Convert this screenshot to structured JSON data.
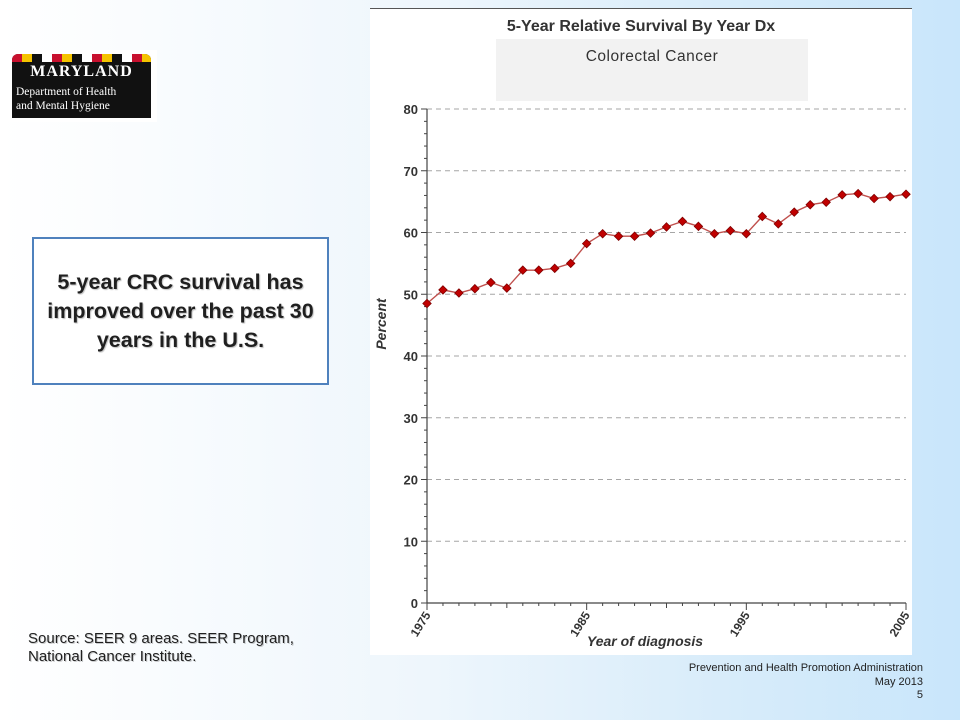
{
  "logo": {
    "name": "MARYLAND",
    "line1": "Department of Health",
    "line2": "and Mental Hygiene"
  },
  "callout": {
    "text": "5-year CRC survival has improved over the past 30 years in the U.S."
  },
  "source": {
    "text": "Source:  SEER 9 areas.  SEER Program, National Cancer Institute."
  },
  "footer": {
    "org": "Prevention and Health Promotion Administration",
    "date": "May 2013",
    "page": "5"
  },
  "chart_data": {
    "type": "line",
    "title": "5-Year Relative Survival By Year Dx",
    "subtitle": "Colorectal Cancer",
    "xlabel": "Year of diagnosis",
    "ylabel": "Percent",
    "xlim": [
      1975,
      2005
    ],
    "ylim": [
      0,
      80
    ],
    "yticks": [
      0,
      10,
      20,
      30,
      40,
      50,
      60,
      70,
      80
    ],
    "xtick_labels": [
      "1975",
      "1985",
      "1995",
      "2005"
    ],
    "grid": "horizontal dashed",
    "colors": {
      "line": "#c0504d",
      "marker": "#c00000",
      "marker_edge": "#7f0000",
      "grid": "#a6a6a6"
    },
    "series": [
      {
        "x": [
          1975,
          1976,
          1977,
          1978,
          1979,
          1980,
          1981,
          1982,
          1983,
          1984,
          1985,
          1986,
          1987,
          1988,
          1989,
          1990,
          1991,
          1992,
          1993,
          1994,
          1995,
          1996,
          1997,
          1998,
          1999,
          2000,
          2001,
          2002,
          2003,
          2004,
          2005
        ],
        "values": [
          48.5,
          50.7,
          50.2,
          50.9,
          51.9,
          51.0,
          53.9,
          53.9,
          54.2,
          55.0,
          58.2,
          59.8,
          59.4,
          59.4,
          59.9,
          60.9,
          61.8,
          61.0,
          59.8,
          60.3,
          59.8,
          62.6,
          61.4,
          63.3,
          64.5,
          64.9,
          66.1,
          66.3,
          65.5,
          65.8,
          66.2
        ]
      }
    ]
  }
}
